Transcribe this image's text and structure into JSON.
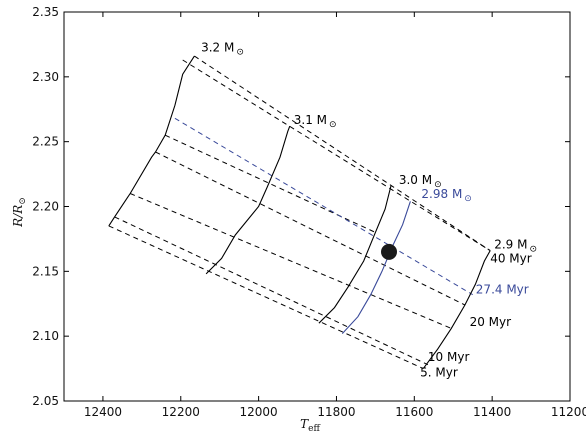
{
  "chart_data": {
    "type": "line",
    "title": "",
    "xlabel": "T",
    "xlabel_sub": "eff",
    "ylabel": "R/R",
    "ylabel_sub": "⊙",
    "xlim": [
      12500,
      11200
    ],
    "ylim": [
      2.05,
      2.35
    ],
    "x_reversed": true,
    "grid": false,
    "xticks": [
      12400,
      12200,
      12000,
      11800,
      11600,
      11400,
      11200
    ],
    "yticks": [
      2.05,
      2.1,
      2.15,
      2.2,
      2.25,
      2.3,
      2.35
    ],
    "tracks": [
      {
        "label": "3.2 M",
        "color": "#000000",
        "points": [
          [
            12385,
            2.185
          ],
          [
            12370,
            2.192
          ],
          [
            12330,
            2.21
          ],
          [
            12275,
            2.238
          ],
          [
            12265,
            2.242
          ],
          [
            12240,
            2.255
          ],
          [
            12215,
            2.278
          ],
          [
            12195,
            2.302
          ],
          [
            12165,
            2.316
          ]
        ],
        "label_at": [
          12158,
          2.318
        ]
      },
      {
        "label": "3.1 M",
        "color": "#000000",
        "points": [
          [
            12135,
            2.148
          ],
          [
            12095,
            2.16
          ],
          [
            12060,
            2.178
          ],
          [
            12000,
            2.2
          ],
          [
            11978,
            2.215
          ],
          [
            11945,
            2.238
          ],
          [
            11925,
            2.258
          ],
          [
            11920,
            2.262
          ]
        ],
        "label_at": [
          11920,
          2.262
        ]
      },
      {
        "label": "3.0 M",
        "color": "#000000",
        "points": [
          [
            11845,
            2.11
          ],
          [
            11805,
            2.122
          ],
          [
            11770,
            2.138
          ],
          [
            11730,
            2.158
          ],
          [
            11700,
            2.18
          ],
          [
            11675,
            2.198
          ],
          [
            11660,
            2.216
          ]
        ],
        "label_at": [
          11650,
          2.216
        ]
      },
      {
        "label": "2.98 M",
        "color": "#3a4a9a",
        "points": [
          [
            11785,
            2.102
          ],
          [
            11745,
            2.115
          ],
          [
            11712,
            2.132
          ],
          [
            11683,
            2.15
          ],
          [
            11655,
            2.17
          ],
          [
            11630,
            2.186
          ],
          [
            11610,
            2.204
          ]
        ],
        "label_at": [
          11592,
          2.205
        ]
      },
      {
        "label": "2.9 M",
        "color": "#000000",
        "points": [
          [
            11577,
            2.075
          ],
          [
            11540,
            2.09
          ],
          [
            11505,
            2.106
          ],
          [
            11470,
            2.124
          ],
          [
            11443,
            2.14
          ],
          [
            11420,
            2.158
          ],
          [
            11405,
            2.166
          ]
        ],
        "label_at": [
          11405,
          2.166
        ]
      }
    ],
    "isochrones": [
      {
        "label": "5. Myr",
        "color": "#000000",
        "points": [
          [
            12385,
            2.185
          ],
          [
            11577,
            2.075
          ]
        ],
        "label_at": [
          11585,
          2.069
        ]
      },
      {
        "label": "10 Myr",
        "color": "#000000",
        "points": [
          [
            12370,
            2.192
          ],
          [
            11565,
            2.078
          ]
        ],
        "label_at": [
          11565,
          2.081
        ]
      },
      {
        "label": "20 Myr",
        "color": "#000000",
        "points": [
          [
            12265,
            2.242
          ],
          [
            11470,
            2.124
          ]
        ],
        "label_at": [
          11458,
          2.108
        ]
      },
      {
        "label": "27.4 Myr",
        "color": "#3a4a9a",
        "points": [
          [
            12215,
            2.268
          ],
          [
            11450,
            2.132
          ]
        ],
        "label_at": [
          11442,
          2.133
        ]
      },
      {
        "label": "40 Myr",
        "color": "#000000",
        "points": [
          [
            12195,
            2.313
          ],
          [
            11405,
            2.166
          ]
        ],
        "label_at": [
          11405,
          2.157
        ]
      }
    ],
    "extra_isochrones": [
      {
        "color": "#000000",
        "points": [
          [
            12330,
            2.21
          ],
          [
            11505,
            2.106
          ]
        ]
      },
      {
        "color": "#000000",
        "points": [
          [
            12240,
            2.255
          ],
          [
            11700,
            2.18
          ]
        ]
      },
      {
        "color": "#000000",
        "points": [
          [
            12165,
            2.316
          ],
          [
            11405,
            2.166
          ]
        ]
      }
    ],
    "marker": {
      "x": 11665,
      "y": 2.165,
      "color": "#1a1a1a"
    }
  }
}
